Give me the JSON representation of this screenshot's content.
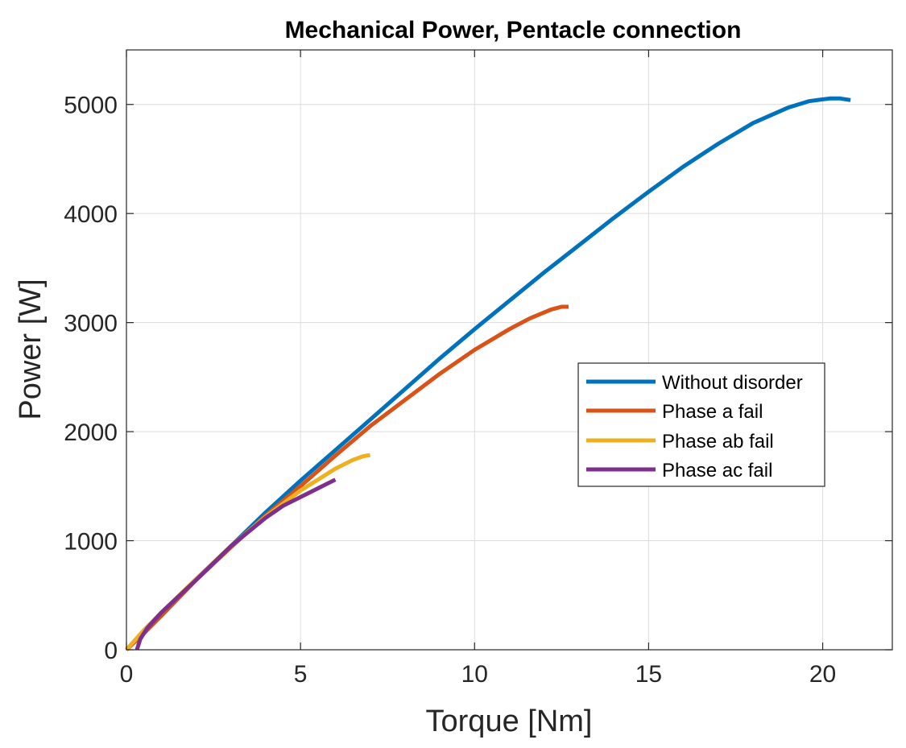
{
  "chart_data": {
    "type": "line",
    "title": "Mechanical Power, Pentacle connection",
    "xlabel": "Torque [Nm]",
    "ylabel": "Power [W]",
    "xlim": [
      0,
      22
    ],
    "ylim": [
      0,
      5500
    ],
    "xticks": [
      0,
      5,
      10,
      15,
      20
    ],
    "yticks": [
      0,
      1000,
      2000,
      3000,
      4000,
      5000
    ],
    "grid": true,
    "legend_position": "center-right",
    "series": [
      {
        "name": "Without disorder",
        "color": "#0072BD",
        "x": [
          0,
          0.5,
          1,
          2,
          3,
          4,
          5,
          6,
          7,
          8,
          9,
          10,
          11,
          12,
          13,
          14,
          15,
          16,
          17,
          18,
          19,
          19.6,
          20.2,
          20.5,
          20.8
        ],
        "y": [
          0,
          170,
          330,
          640,
          950,
          1260,
          1550,
          1830,
          2110,
          2390,
          2670,
          2940,
          3200,
          3460,
          3710,
          3960,
          4200,
          4430,
          4640,
          4830,
          4970,
          5030,
          5055,
          5055,
          5040
        ]
      },
      {
        "name": "Phase a fail",
        "color": "#D95319",
        "x": [
          0,
          0.5,
          1,
          2,
          3,
          4,
          5,
          6,
          7,
          8,
          9,
          10,
          11,
          11.6,
          12.2,
          12.5,
          12.7
        ],
        "y": [
          0,
          150,
          310,
          640,
          940,
          1230,
          1500,
          1780,
          2050,
          2290,
          2530,
          2750,
          2940,
          3040,
          3120,
          3145,
          3145
        ]
      },
      {
        "name": "Phase ab fail",
        "color": "#EDB120",
        "x": [
          0,
          0.5,
          1,
          2,
          3,
          4,
          5,
          5.5,
          6,
          6.5,
          6.8,
          7.0
        ],
        "y": [
          0,
          180,
          340,
          650,
          950,
          1220,
          1460,
          1560,
          1660,
          1740,
          1775,
          1785
        ]
      },
      {
        "name": "Phase ac fail",
        "color": "#7E2F8E",
        "x": [
          0.3,
          0.4,
          0.6,
          1,
          2,
          3,
          4,
          4.5,
          5,
          5.5,
          6.0
        ],
        "y": [
          0,
          100,
          200,
          340,
          640,
          950,
          1210,
          1320,
          1400,
          1480,
          1560
        ]
      }
    ]
  }
}
